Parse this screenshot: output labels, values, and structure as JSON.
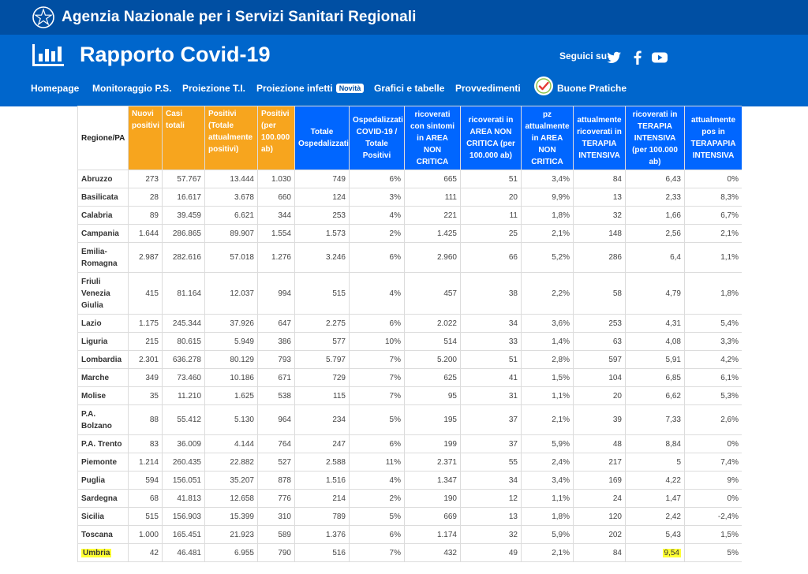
{
  "topbar": {
    "agency": "Agenzia Nazionale per i Servizi Sanitari Regionali"
  },
  "header": {
    "title": "Rapporto Covid-19",
    "social_label": "Seguici su",
    "social_icons": [
      "twitter-icon",
      "facebook-icon",
      "youtube-icon"
    ]
  },
  "nav": {
    "items": [
      "Homepage",
      "Monitoraggio P.S.",
      "Proiezione T.I.",
      "Proiezione infetti",
      "Grafici e tabelle",
      "Provvedimenti",
      "Buone Pratiche"
    ],
    "badge": "Novità"
  },
  "colors": {
    "topbar": "#004fa3",
    "header": "#0066cc",
    "orange_header": "#f7a51e",
    "blue_header": "#0066ff",
    "highlight": "#ffff33"
  },
  "table": {
    "headers": [
      "Regione/PA",
      "Nuovi positivi",
      "Casi totali",
      "Positivi (Totale attualmente positivi)",
      "Positivi (per 100.000 ab)",
      "Totale Ospedalizzati",
      "Ospedalizzati COVID-19 / Totale Positivi",
      "ricoverati con sintomi in AREA NON CRITICA",
      "ricoverati in AREA NON CRITICA (per 100.000 ab)",
      "pz attualmente in AREA NON CRITICA",
      "attualmente ricoverati in TERAPIA INTENSIVA",
      "ricoverati in TERAPIA INTENSIVA (per 100.000 ab)",
      "attualmente pos in TERAPAPIA INTENSIVA"
    ],
    "rows": [
      [
        "Abruzzo",
        "273",
        "57.767",
        "13.444",
        "1.030",
        "749",
        "6%",
        "665",
        "51",
        "3,4%",
        "84",
        "6,43",
        "0%"
      ],
      [
        "Basilicata",
        "28",
        "16.617",
        "3.678",
        "660",
        "124",
        "3%",
        "111",
        "20",
        "9,9%",
        "13",
        "2,33",
        "8,3%"
      ],
      [
        "Calabria",
        "89",
        "39.459",
        "6.621",
        "344",
        "253",
        "4%",
        "221",
        "11",
        "1,8%",
        "32",
        "1,66",
        "6,7%"
      ],
      [
        "Campania",
        "1.644",
        "286.865",
        "89.907",
        "1.554",
        "1.573",
        "2%",
        "1.425",
        "25",
        "2,1%",
        "148",
        "2,56",
        "2,1%"
      ],
      [
        "Emilia-Romagna",
        "2.987",
        "282.616",
        "57.018",
        "1.276",
        "3.246",
        "6%",
        "2.960",
        "66",
        "5,2%",
        "286",
        "6,4",
        "1,1%"
      ],
      [
        "Friuli Venezia Giulia",
        "415",
        "81.164",
        "12.037",
        "994",
        "515",
        "4%",
        "457",
        "38",
        "2,2%",
        "58",
        "4,79",
        "1,8%"
      ],
      [
        "Lazio",
        "1.175",
        "245.344",
        "37.926",
        "647",
        "2.275",
        "6%",
        "2.022",
        "34",
        "3,6%",
        "253",
        "4,31",
        "5,4%"
      ],
      [
        "Liguria",
        "215",
        "80.615",
        "5.949",
        "386",
        "577",
        "10%",
        "514",
        "33",
        "1,4%",
        "63",
        "4,08",
        "3,3%"
      ],
      [
        "Lombardia",
        "2.301",
        "636.278",
        "80.129",
        "793",
        "5.797",
        "7%",
        "5.200",
        "51",
        "2,8%",
        "597",
        "5,91",
        "4,2%"
      ],
      [
        "Marche",
        "349",
        "73.460",
        "10.186",
        "671",
        "729",
        "7%",
        "625",
        "41",
        "1,5%",
        "104",
        "6,85",
        "6,1%"
      ],
      [
        "Molise",
        "35",
        "11.210",
        "1.625",
        "538",
        "115",
        "7%",
        "95",
        "31",
        "1,1%",
        "20",
        "6,62",
        "5,3%"
      ],
      [
        "P.A. Bolzano",
        "88",
        "55.412",
        "5.130",
        "964",
        "234",
        "5%",
        "195",
        "37",
        "2,1%",
        "39",
        "7,33",
        "2,6%"
      ],
      [
        "P.A. Trento",
        "83",
        "36.009",
        "4.144",
        "764",
        "247",
        "6%",
        "199",
        "37",
        "5,9%",
        "48",
        "8,84",
        "0%"
      ],
      [
        "Piemonte",
        "1.214",
        "260.435",
        "22.882",
        "527",
        "2.588",
        "11%",
        "2.371",
        "55",
        "2,4%",
        "217",
        "5",
        "7,4%"
      ],
      [
        "Puglia",
        "594",
        "156.051",
        "35.207",
        "878",
        "1.516",
        "4%",
        "1.347",
        "34",
        "3,4%",
        "169",
        "4,22",
        "9%"
      ],
      [
        "Sardegna",
        "68",
        "41.813",
        "12.658",
        "776",
        "214",
        "2%",
        "190",
        "12",
        "1,1%",
        "24",
        "1,47",
        "0%"
      ],
      [
        "Sicilia",
        "515",
        "156.903",
        "15.399",
        "310",
        "789",
        "5%",
        "669",
        "13",
        "1,8%",
        "120",
        "2,42",
        "-2,4%"
      ],
      [
        "Toscana",
        "1.000",
        "165.451",
        "21.923",
        "589",
        "1.376",
        "6%",
        "1.174",
        "32",
        "5,9%",
        "202",
        "5,43",
        "1,5%"
      ],
      [
        "Umbria",
        "42",
        "46.481",
        "6.955",
        "790",
        "516",
        "7%",
        "432",
        "49",
        "2,1%",
        "84",
        "9,54",
        "5%"
      ]
    ],
    "highlighted": [
      {
        "row": 18,
        "cols": [
          0,
          11
        ]
      }
    ]
  }
}
